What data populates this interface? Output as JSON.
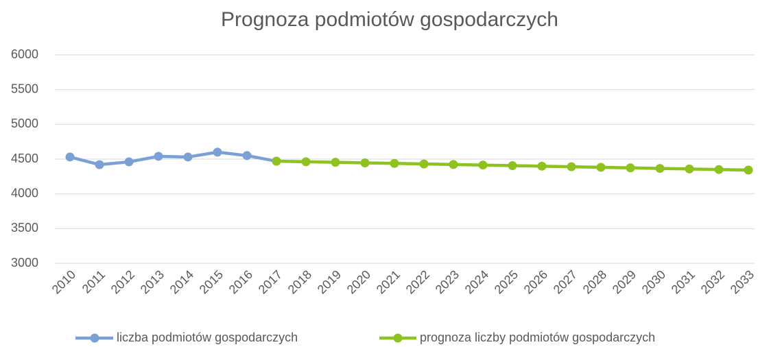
{
  "chart_data": {
    "type": "line",
    "title": "Prognoza podmiotów gospodarczych",
    "categories": [
      "2010",
      "2011",
      "2012",
      "2013",
      "2014",
      "2015",
      "2016",
      "2017",
      "2018",
      "2019",
      "2020",
      "2021",
      "2022",
      "2023",
      "2024",
      "2025",
      "2026",
      "2027",
      "2028",
      "2029",
      "2030",
      "2031",
      "2032",
      "2033"
    ],
    "series": [
      {
        "name": "liczba podmiotów gospodarczych",
        "color": "#7aa0d6",
        "values": [
          4530,
          4420,
          4460,
          4540,
          4530,
          4600,
          4550,
          4470,
          null,
          null,
          null,
          null,
          null,
          null,
          null,
          null,
          null,
          null,
          null,
          null,
          null,
          null,
          null,
          null
        ]
      },
      {
        "name": "prognoza liczby podmiotów gospodarczych",
        "color": "#8dc21f",
        "values": [
          null,
          null,
          null,
          null,
          null,
          null,
          null,
          4470,
          4462,
          4454,
          4446,
          4438,
          4430,
          4422,
          4414,
          4406,
          4398,
          4390,
          4382,
          4374,
          4366,
          4358,
          4350,
          4342
        ]
      }
    ],
    "ylim": [
      3000,
      6000
    ],
    "yticks": [
      3000,
      3500,
      4000,
      4500,
      5000,
      5500,
      6000
    ],
    "grid": true,
    "legend": "bottom"
  }
}
